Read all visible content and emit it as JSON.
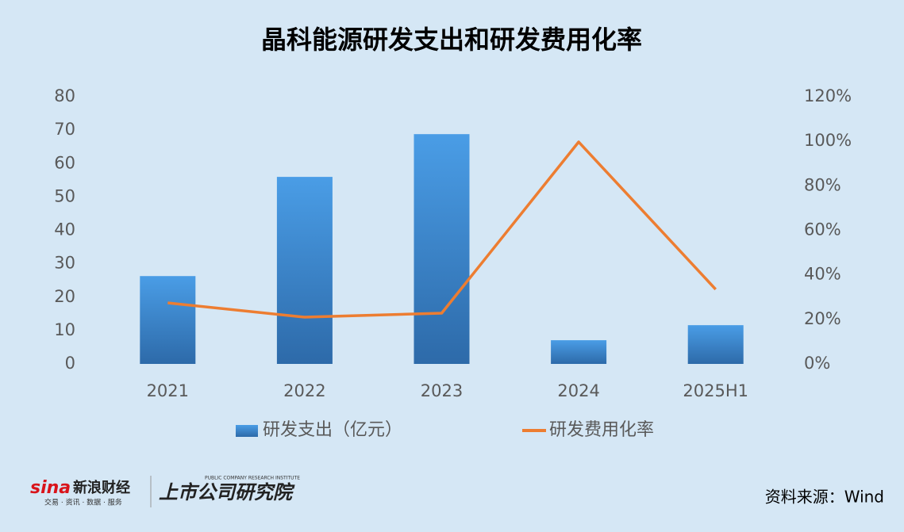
{
  "chart_data": {
    "type": "bar-line",
    "title": "晶科能源研发支出和研发费用化率",
    "categories": [
      "2021",
      "2022",
      "2023",
      "2024",
      "2025H1"
    ],
    "series": [
      {
        "name": "研发支出（亿元）",
        "type": "bar",
        "color": "#3d8fd9",
        "values": [
          26.3,
          56.0,
          68.8,
          7.1,
          11.6
        ]
      },
      {
        "name": "研发费用化率",
        "type": "line",
        "axis": "y2",
        "color": "#ed7d31",
        "values": [
          27.4,
          21.0,
          22.8,
          99.7,
          33.5
        ]
      }
    ],
    "ylim": [
      0,
      80
    ],
    "yticks": [
      0,
      10,
      20,
      30,
      40,
      50,
      60,
      70,
      80
    ],
    "y2lim": [
      0,
      120
    ],
    "y2ticks": [
      {
        "value": 0,
        "label": "0%"
      },
      {
        "value": 20,
        "label": "20%"
      },
      {
        "value": 40,
        "label": "40%"
      },
      {
        "value": 60,
        "label": "60%"
      },
      {
        "value": 80,
        "label": "80%"
      },
      {
        "value": 100,
        "label": "100%"
      },
      {
        "value": 120,
        "label": "120%"
      }
    ],
    "grid": false,
    "legend": "bottom"
  },
  "footer": {
    "logo": "sina",
    "brand": "新浪财经",
    "tagline": "交易 · 资讯 · 数据 · 服务",
    "institute": "上市公司研究院",
    "institute_en": "PUBLIC COMPANY RESEARCH INSTITUTE",
    "source": "资料来源：Wind"
  }
}
